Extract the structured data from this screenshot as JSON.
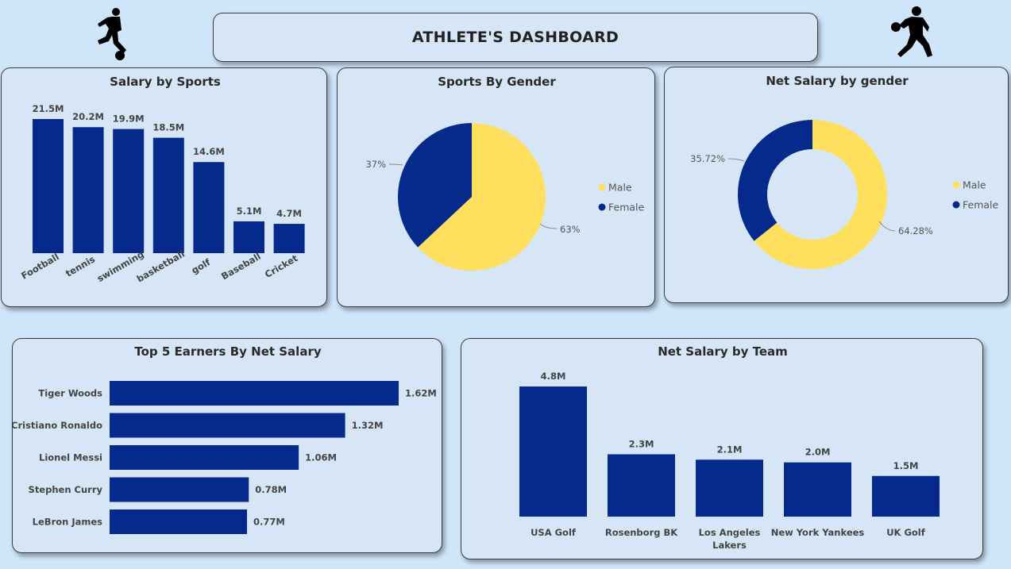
{
  "header": {
    "title": "ATHLETE'S DASHBOARD",
    "left_icon": "soccer-player-icon",
    "right_icon": "basketball-player-icon"
  },
  "colors": {
    "bar": "#062a8c",
    "male": "#ffdf5e",
    "female": "#062a8c"
  },
  "chart_data": [
    {
      "id": "salary_by_sports",
      "type": "bar",
      "title": "Salary by Sports",
      "categories": [
        "Football",
        "tennis",
        "swimming",
        "basketball",
        "golf",
        "Baseball",
        "Cricket"
      ],
      "values": [
        21.5,
        20.2,
        19.9,
        18.5,
        14.6,
        5.1,
        4.7
      ],
      "labels": [
        "21.5M",
        "20.2M",
        "19.9M",
        "18.5M",
        "14.6M",
        "5.1M",
        "4.7M"
      ],
      "unit": "M",
      "ylim": [
        0,
        21.5
      ]
    },
    {
      "id": "sports_by_gender",
      "type": "pie",
      "title": "Sports By Gender",
      "categories": [
        "Male",
        "Female"
      ],
      "values": [
        63,
        37
      ],
      "labels": [
        "63%",
        "37%"
      ],
      "legend": "right"
    },
    {
      "id": "net_salary_by_gender",
      "type": "pie",
      "donut": true,
      "title": "Net Salary by gender",
      "categories": [
        "Male",
        "Female"
      ],
      "values": [
        64.28,
        35.72
      ],
      "labels": [
        "64.28%",
        "35.72%"
      ],
      "legend": "right"
    },
    {
      "id": "top5_earners",
      "type": "bar",
      "orientation": "horizontal",
      "title": "Top 5 Earners By Net Salary",
      "categories": [
        "Tiger Woods",
        "Cristiano Ronaldo",
        "Lionel Messi",
        "Stephen Curry",
        "LeBron James"
      ],
      "values": [
        1.62,
        1.32,
        1.06,
        0.78,
        0.77
      ],
      "labels": [
        "1.62M",
        "1.32M",
        "1.06M",
        "0.78M",
        "0.77M"
      ],
      "xlim": [
        0,
        1.62
      ]
    },
    {
      "id": "net_salary_by_team",
      "type": "bar",
      "title": "Net Salary by Team",
      "categories": [
        "USA Golf",
        "Rosenborg BK",
        "Los Angeles Lakers",
        "New York Yankees",
        "UK Golf"
      ],
      "category_lines": [
        [
          "USA Golf"
        ],
        [
          "Rosenborg BK"
        ],
        [
          "Los Angeles",
          "Lakers"
        ],
        [
          "New York Yankees"
        ],
        [
          "UK Golf"
        ]
      ],
      "values": [
        4.8,
        2.3,
        2.1,
        2.0,
        1.5
      ],
      "labels": [
        "4.8M",
        "2.3M",
        "2.1M",
        "2.0M",
        "1.5M"
      ],
      "ylim": [
        0,
        4.8
      ]
    }
  ]
}
